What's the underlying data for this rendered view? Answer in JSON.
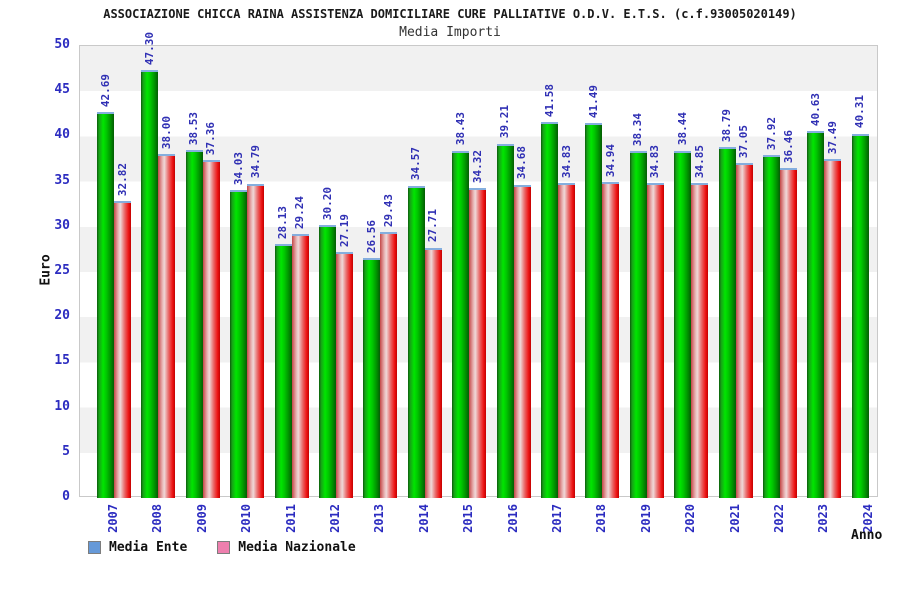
{
  "header": {
    "title": "ASSOCIAZIONE CHICCA RAINA ASSISTENZA DOMICILIARE CURE PALLIATIVE O.D.V. E.T.S. (c.f.93005020149)",
    "subtitle": "Media Importi"
  },
  "axes": {
    "y_label": "Euro",
    "x_label": "Anno",
    "y_ticks": [
      0,
      5,
      10,
      15,
      20,
      25,
      30,
      35,
      40,
      45,
      50
    ]
  },
  "legend": {
    "items": [
      {
        "label": "Media Ente",
        "swatch_color": "#6699d8"
      },
      {
        "label": "Media Nazionale",
        "swatch_color": "#ee7fae"
      }
    ]
  },
  "colors": {
    "label_blue": "#3030b4",
    "tick_blue": "#2c2cc0",
    "band_gray": "#f1f1f1",
    "bar_green_bright": "#00e600",
    "bar_red_bright": "#ee1515",
    "bar_top_cap": "#85aede"
  },
  "chart_data": {
    "type": "bar",
    "title": "Media Importi",
    "xlabel": "Anno",
    "ylabel": "Euro",
    "ylim": [
      0,
      50
    ],
    "y_tick_step": 5,
    "grid": "horizontal-bands-every-5",
    "legend_position": "bottom-left",
    "value_label_format": "two-decimals-rotated-90",
    "categories": [
      "2007",
      "2008",
      "2009",
      "2010",
      "2011",
      "2012",
      "2013",
      "2014",
      "2015",
      "2016",
      "2017",
      "2018",
      "2019",
      "2020",
      "2021",
      "2022",
      "2023",
      "2024"
    ],
    "series": [
      {
        "name": "Media Ente",
        "bar_style": "green",
        "values": [
          42.69,
          47.3,
          38.53,
          34.03,
          28.13,
          30.2,
          26.56,
          34.57,
          38.43,
          39.21,
          41.58,
          41.49,
          38.34,
          38.44,
          38.79,
          37.92,
          40.63,
          40.31
        ]
      },
      {
        "name": "Media Nazionale",
        "bar_style": "red",
        "values": [
          32.82,
          38.0,
          37.36,
          34.79,
          29.24,
          27.19,
          29.43,
          27.71,
          34.32,
          34.68,
          34.83,
          34.94,
          34.83,
          34.85,
          37.05,
          36.46,
          37.49,
          null
        ]
      }
    ]
  }
}
